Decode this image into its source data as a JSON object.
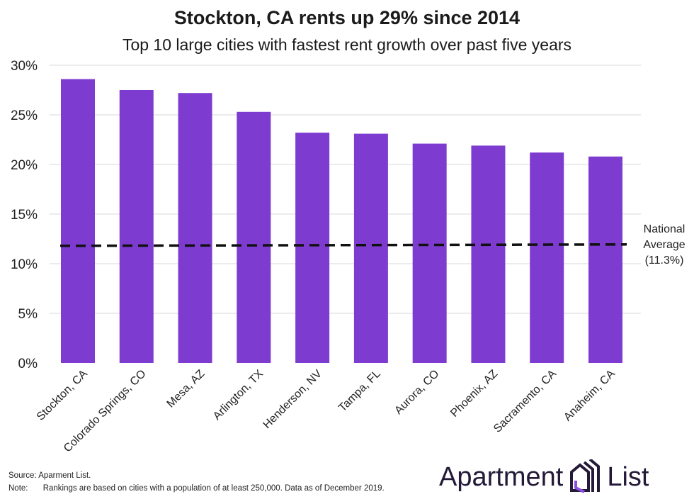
{
  "chart_data": {
    "type": "bar",
    "title": "Stockton, CA rents up 29% since 2014",
    "subtitle": "Top 10 large cities with fastest rent growth over past five years",
    "categories": [
      "Stockton, CA",
      "Colorado Springs, CO",
      "Mesa, AZ",
      "Arlington, TX",
      "Henderson, NV",
      "Tampa, FL",
      "Aurora, CO",
      "Phoenix, AZ",
      "Sacramento, CA",
      "Anaheim, CA"
    ],
    "values": [
      28.6,
      27.5,
      27.2,
      25.3,
      23.2,
      23.1,
      22.1,
      21.9,
      21.2,
      20.8
    ],
    "ylim": [
      0,
      30
    ],
    "yticks": [
      "0%",
      "5%",
      "10%",
      "15%",
      "20%",
      "25%",
      "30%"
    ],
    "grid": true,
    "bar_color": "#7e3bd0",
    "reference_line": {
      "value": 11.3,
      "style": "dashed",
      "label_lines": [
        "National",
        "Average",
        "(11.3%)"
      ]
    }
  },
  "footer": {
    "source": "Source: Aparment List.",
    "note_label": "Note:",
    "note": "Rankings are based on cities with a population of at least 250,000. Data as of December 2019."
  },
  "logo": {
    "left": "Apartment",
    "right": "List"
  }
}
